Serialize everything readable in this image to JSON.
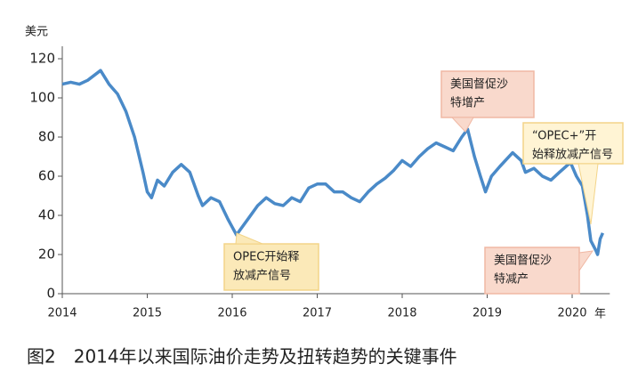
{
  "chart_data": {
    "type": "line",
    "y_label": "美元",
    "x_unit": "年",
    "caption": "图2　2014年以来国际油价走势及扭转趋势的关键事件",
    "xlim": [
      2014,
      2020.6
    ],
    "xticks": [
      2014,
      2015,
      2016,
      2017,
      2018,
      2019,
      2020
    ],
    "ylim": [
      0,
      120
    ],
    "yticks": [
      0,
      20,
      40,
      60,
      80,
      100,
      120
    ],
    "grid": false,
    "series": [
      {
        "color": "#4a8ac8",
        "x": [
          2014.0,
          2014.1,
          2014.2,
          2014.3,
          2014.45,
          2014.55,
          2014.65,
          2014.75,
          2014.85,
          2014.95,
          2015.0,
          2015.05,
          2015.12,
          2015.2,
          2015.3,
          2015.4,
          2015.5,
          2015.6,
          2015.65,
          2015.75,
          2015.85,
          2015.95,
          2016.05,
          2016.1,
          2016.2,
          2016.3,
          2016.4,
          2016.5,
          2016.6,
          2016.7,
          2016.8,
          2016.9,
          2017.0,
          2017.1,
          2017.2,
          2017.3,
          2017.4,
          2017.5,
          2017.6,
          2017.7,
          2017.8,
          2017.9,
          2018.0,
          2018.1,
          2018.2,
          2018.3,
          2018.4,
          2018.5,
          2018.6,
          2018.7,
          2018.77,
          2018.85,
          2018.92,
          2018.98,
          2019.05,
          2019.15,
          2019.3,
          2019.4,
          2019.45,
          2019.55,
          2019.65,
          2019.75,
          2019.85,
          2019.98,
          2020.05,
          2020.12,
          2020.18,
          2020.22,
          2020.28,
          2020.3,
          2020.33,
          2020.36
        ],
        "values": [
          107,
          108,
          107,
          109,
          114,
          107,
          102,
          93,
          80,
          62,
          52,
          49,
          58,
          55,
          62,
          66,
          62,
          50,
          45,
          49,
          47,
          38,
          30,
          33,
          39,
          45,
          49,
          46,
          45,
          49,
          47,
          54,
          56,
          56,
          52,
          52,
          49,
          47,
          52,
          56,
          59,
          63,
          68,
          65,
          70,
          74,
          77,
          75,
          73,
          80,
          84,
          70,
          60,
          52,
          60,
          65,
          72,
          68,
          62,
          64,
          60,
          58,
          62,
          67,
          60,
          55,
          40,
          27,
          22,
          20,
          28,
          31
        ]
      }
    ],
    "annotations": [
      {
        "lines": [
          "OPEC开始释",
          "放减产信号"
        ]
      },
      {
        "lines": [
          "美国督促沙",
          "特增产"
        ]
      },
      {
        "lines": [
          "“OPEC+”开",
          "始释放减产信号"
        ]
      },
      {
        "lines": [
          "美国督促沙",
          "特减产"
        ]
      }
    ]
  }
}
